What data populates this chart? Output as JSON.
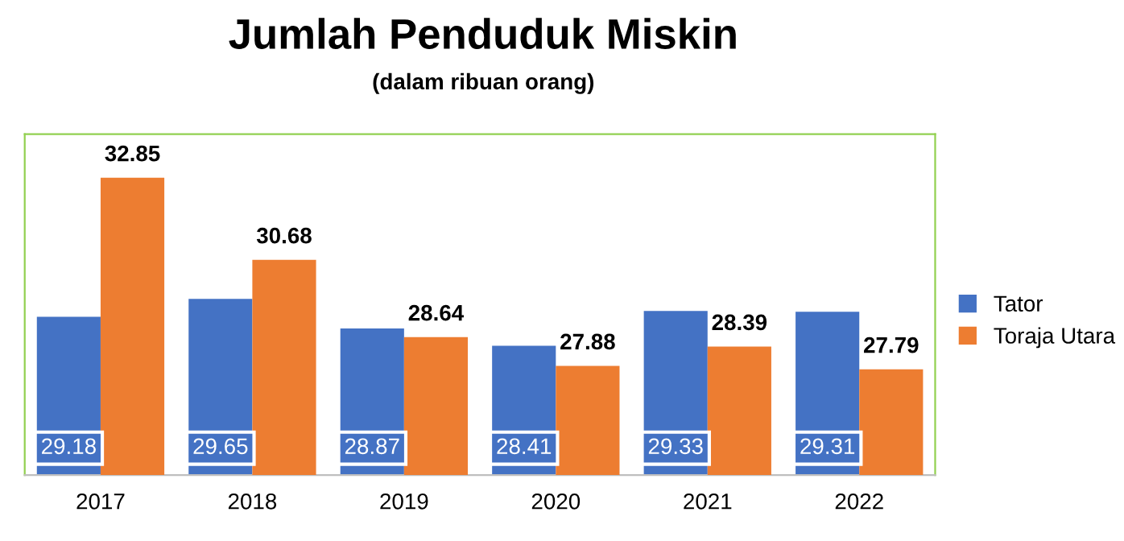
{
  "chart_data": {
    "type": "bar",
    "title": "Jumlah Penduduk Miskin",
    "subtitle": "(dalam ribuan orang)",
    "categories": [
      "2017",
      "2018",
      "2019",
      "2020",
      "2021",
      "2022"
    ],
    "series": [
      {
        "name": "Tator",
        "color": "#4472c4",
        "values": [
          29.18,
          29.65,
          28.87,
          28.41,
          29.33,
          29.31
        ]
      },
      {
        "name": "Toraja Utara",
        "color": "#ed7d31",
        "values": [
          32.85,
          30.68,
          28.64,
          27.88,
          28.39,
          27.79
        ]
      }
    ],
    "ylim": [
      25,
      34
    ],
    "tick_labels": "x",
    "data_labels": true,
    "grid": false,
    "legend": "right"
  }
}
